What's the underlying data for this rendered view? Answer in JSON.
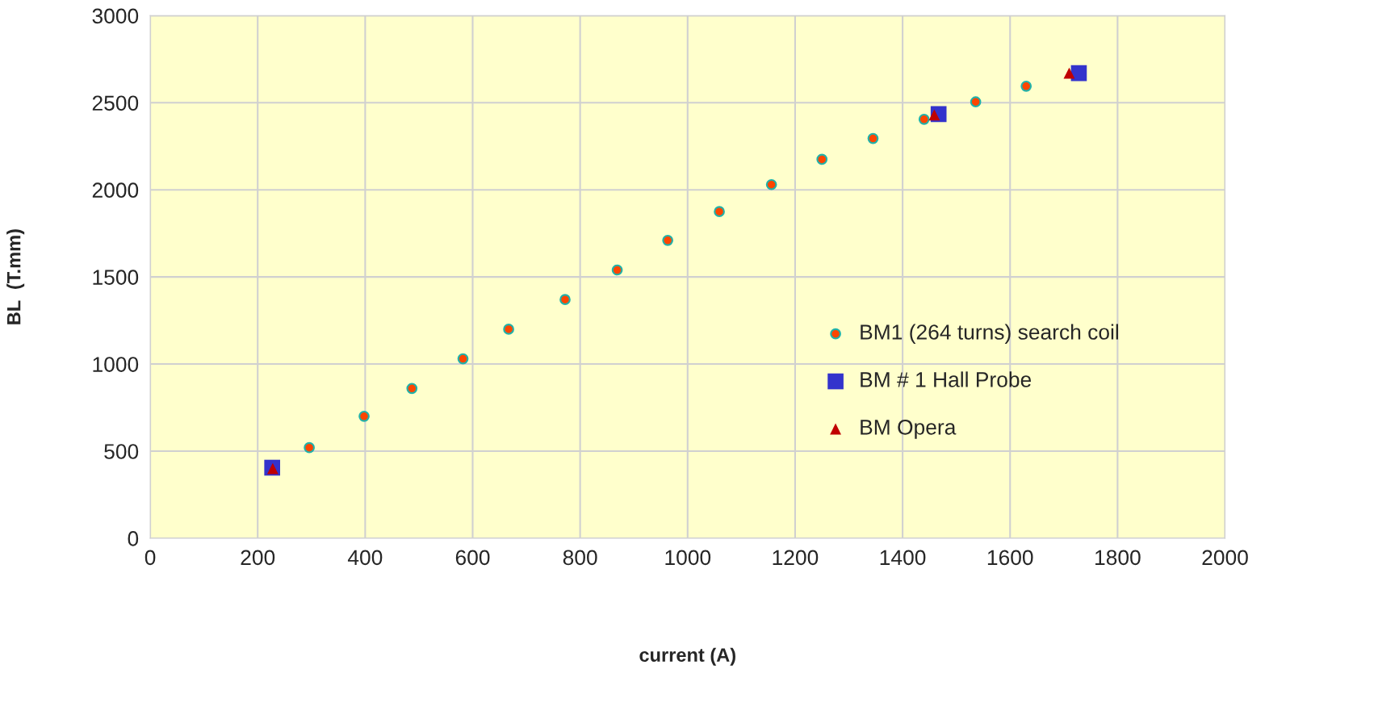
{
  "chart_data": {
    "type": "scatter",
    "xlabel": "current (A)",
    "ylabel": "BL  (T.mm)",
    "xlim": [
      0,
      2000
    ],
    "xticks": [
      0,
      200,
      400,
      600,
      800,
      1000,
      1200,
      1400,
      1600,
      1800,
      2000
    ],
    "ylim": [
      0,
      3000
    ],
    "yticks": [
      0,
      500,
      1000,
      1500,
      2000,
      2500,
      3000
    ],
    "grid": true,
    "legend": "right",
    "series": [
      {
        "name": "BM1 (264 turns) search coil",
        "color": "#ff4500",
        "marker": "circle",
        "x": [
          296,
          398,
          487,
          582,
          667,
          772,
          869,
          963,
          1059,
          1156,
          1250,
          1345,
          1440,
          1536,
          1630
        ],
        "values": [
          520,
          700,
          860,
          1030,
          1200,
          1370,
          1540,
          1710,
          1875,
          2030,
          2175,
          2295,
          2405,
          2505,
          2595
        ]
      },
      {
        "name": "BM # 1 Hall Probe",
        "color": "#3333cc",
        "marker": "square",
        "x": [
          227,
          1467,
          1728
        ],
        "values": [
          405,
          2435,
          2670
        ]
      },
      {
        "name": "BM Opera",
        "color": "#c00000",
        "marker": "triangle",
        "x": [
          228,
          1459,
          1710
        ],
        "values": [
          400,
          2430,
          2670
        ]
      }
    ]
  }
}
